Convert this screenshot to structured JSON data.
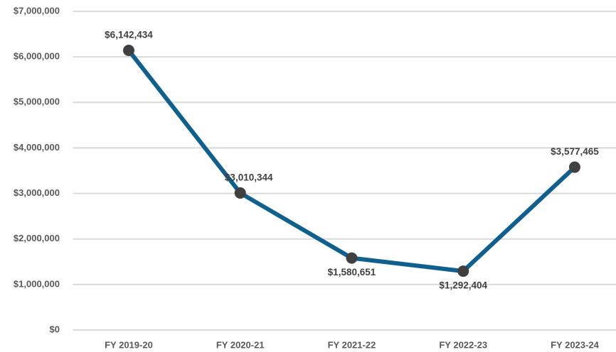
{
  "chart_data": {
    "type": "line",
    "categories": [
      "FY 2019-20",
      "FY 2020-21",
      "FY 2021-22",
      "FY 2022-23",
      "FY 2023-24"
    ],
    "series": [
      {
        "color": "#0f5f8f",
        "marker_color": "#404040",
        "values": [
          6142434,
          3010344,
          1580651,
          1292404,
          3577465
        ],
        "value_labels": [
          "$6,142,434",
          "$3,010,344",
          "$1,580,651",
          "$1,292,404",
          "$3,577,465"
        ]
      }
    ],
    "ylim": [
      0,
      7000000
    ],
    "yticks": [
      {
        "value": 0,
        "label": "$0"
      },
      {
        "value": 1000000,
        "label": "$1,000,000"
      },
      {
        "value": 2000000,
        "label": "$2,000,000"
      },
      {
        "value": 3000000,
        "label": "$3,000,000"
      },
      {
        "value": 4000000,
        "label": "$4,000,000"
      },
      {
        "value": 5000000,
        "label": "$5,000,000"
      },
      {
        "value": 6000000,
        "label": "$6,000,000"
      },
      {
        "value": 7000000,
        "label": "$7,000,000"
      }
    ],
    "grid": true
  }
}
